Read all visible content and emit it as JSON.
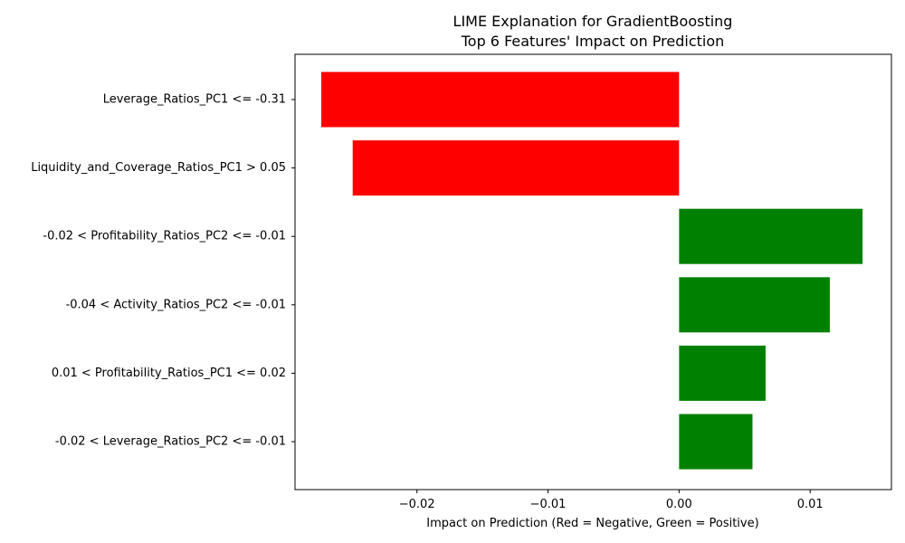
{
  "chart_data": {
    "type": "bar",
    "orientation": "horizontal",
    "title": "LIME Explanation for GradientBoosting",
    "subtitle": "Top 6 Features' Impact on Prediction",
    "xlabel": "Impact on Prediction (Red = Negative, Green = Positive)",
    "ylabel": "",
    "categories": [
      "Leverage_Ratios_PC1 <= -0.31",
      "Liquidity_and_Coverage_Ratios_PC1 > 0.05",
      "-0.02 < Profitability_Ratios_PC2 <= -0.01",
      "-0.04 < Activity_Ratios_PC2 <= -0.01",
      "0.01 < Profitability_Ratios_PC1 <= 0.02",
      "-0.02 < Leverage_Ratios_PC2 <= -0.01"
    ],
    "values": [
      -0.0273,
      -0.0249,
      0.014,
      0.0115,
      0.0066,
      0.0056
    ],
    "xlim": [
      -0.0293,
      0.0162
    ],
    "xticks": [
      -0.02,
      -0.01,
      0.0,
      0.01
    ],
    "xtick_labels": [
      "−0.02",
      "−0.01",
      "0.00",
      "0.01"
    ],
    "colors": {
      "negative": "#ff0000",
      "positive": "#008000"
    },
    "grid": false,
    "legend": "none"
  }
}
